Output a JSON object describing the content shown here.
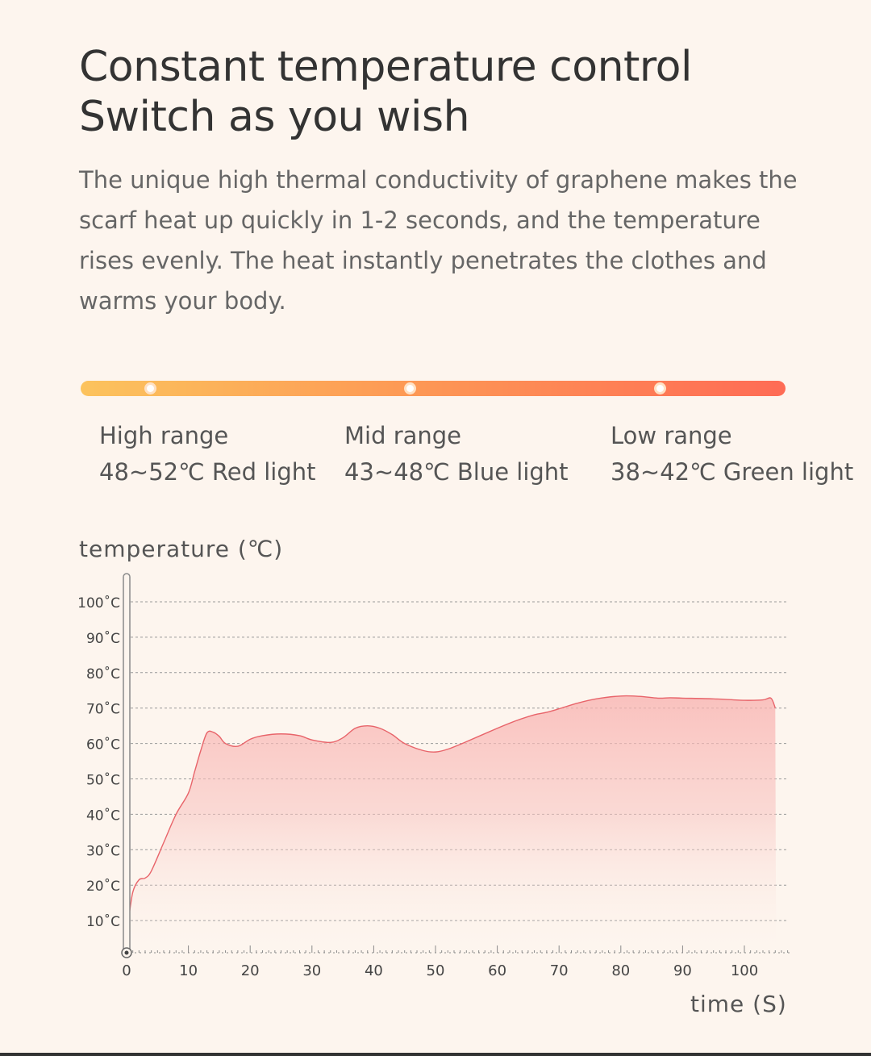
{
  "heading": {
    "line1": "Constant temperature control",
    "line2": "Switch as you wish"
  },
  "description": "The unique high thermal conductivity of graphene makes the scarf heat up quickly in 1-2 seconds, and the temperature rises evenly. The heat instantly penetrates the clothes and warms your body.",
  "ranges": [
    {
      "name": "High range",
      "detail": "48~52℃  Red light"
    },
    {
      "name": "Mid range",
      "detail": "43~48℃ Blue light"
    },
    {
      "name": "Low range",
      "detail": "38~42℃ Green light"
    }
  ],
  "colors": {
    "background": "#fdf5ee",
    "bar_start": "#fcc35d",
    "bar_end": "#fe6b55",
    "line": "#e8646a",
    "fill": "#f8b6b4"
  },
  "chart_data": {
    "type": "area",
    "ylabel": "temperature (℃)",
    "xlabel": "time (S)",
    "xlim": [
      0,
      107
    ],
    "ylim": [
      0,
      100
    ],
    "x_ticks": [
      0,
      10,
      20,
      30,
      40,
      50,
      60,
      70,
      80,
      90,
      100
    ],
    "x_tick_labels": [
      "0",
      "10",
      "20",
      "30",
      "40",
      "50",
      "60",
      "70",
      "80",
      "90",
      "100"
    ],
    "y_ticks": [
      10,
      20,
      30,
      40,
      50,
      60,
      70,
      80,
      90,
      100
    ],
    "y_tick_labels": [
      "10˚C",
      "20˚C",
      "30˚C",
      "40˚C",
      "50˚C",
      "60˚C",
      "70˚C",
      "80˚C",
      "90˚C",
      "100˚C"
    ],
    "grid": true,
    "series": [
      {
        "x": [
          0.3,
          1,
          2,
          3,
          4,
          6,
          8,
          10,
          11,
          12,
          13,
          14,
          15,
          16,
          18,
          20,
          22,
          25,
          28,
          30,
          33,
          35,
          37,
          39,
          41,
          43,
          45,
          48,
          50,
          52,
          55,
          60,
          63,
          66,
          68,
          70,
          73,
          76,
          80,
          83,
          86,
          88,
          90,
          95,
          100,
          103,
          104.3,
          105
        ],
        "y": [
          10,
          18,
          21.5,
          22,
          24,
          32,
          40,
          46,
          52,
          58,
          63,
          63.2,
          62,
          60,
          59.2,
          61.2,
          62.2,
          62.7,
          62.2,
          61,
          60.3,
          61.6,
          64.3,
          65,
          64.3,
          62.5,
          60,
          58,
          57.6,
          58.4,
          60.5,
          64.3,
          66.4,
          68.1,
          68.8,
          69.8,
          71.4,
          72.6,
          73.4,
          73.3,
          72.8,
          72.9,
          72.8,
          72.6,
          72.2,
          72.3,
          72.8,
          70
        ]
      }
    ]
  }
}
